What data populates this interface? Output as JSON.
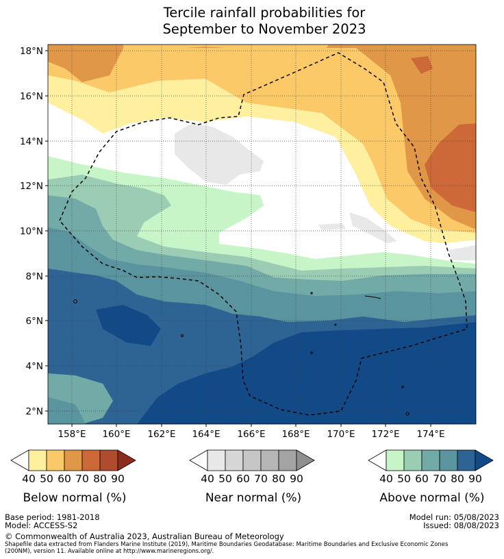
{
  "title": {
    "line1": "Tercile rainfall probabilities for",
    "line2": "September to November 2023"
  },
  "map": {
    "lat_labels": [
      "18°N",
      "16°N",
      "14°N",
      "12°N",
      "10°N",
      "8°N",
      "6°N",
      "4°N",
      "2°N"
    ],
    "lon_labels": [
      "158°E",
      "160°E",
      "162°E",
      "164°E",
      "166°E",
      "168°E",
      "170°E",
      "172°E",
      "174°E"
    ]
  },
  "legends": {
    "below": {
      "label": "Below normal (%)",
      "ticks": [
        "40",
        "50",
        "60",
        "70",
        "80",
        "90"
      ],
      "colors": [
        "#fff0a0",
        "#fcc968",
        "#e09848",
        "#cd6838",
        "#b04c2e",
        "#8c2c1e"
      ]
    },
    "near": {
      "label": "Near normal (%)",
      "ticks": [
        "40",
        "50",
        "60",
        "70",
        "80",
        "90"
      ],
      "colors": [
        "#e8e8e8",
        "#d6d6d6",
        "#c6c6c6",
        "#b6b6b6",
        "#a4a4a4",
        "#8f8f8f"
      ]
    },
    "above": {
      "label": "Above normal (%)",
      "ticks": [
        "40",
        "50",
        "60",
        "70",
        "80",
        "90"
      ],
      "colors": [
        "#c8f5c8",
        "#9acdb4",
        "#72aaa8",
        "#5a949e",
        "#2e6494",
        "#124a88"
      ]
    }
  },
  "footer": {
    "base_period": "Base period: 1981-2018",
    "model": "Model: ACCESS-S2",
    "model_run": "Model run: 05/08/2023",
    "issued": "Issued: 08/08/2023",
    "copyright": "© Commonwealth of Australia 2023, Australian Bureau of Meteorology",
    "shapefile_line1": "Shapefile data extracted from Flanders Marine Institute (2019), Maritime Boundaries Geodatabase: Maritime Boundaries and Exclusive Economic Zones",
    "shapefile_line2": "(200NM), version 11. Available online at http://www.marineregions.org/."
  }
}
